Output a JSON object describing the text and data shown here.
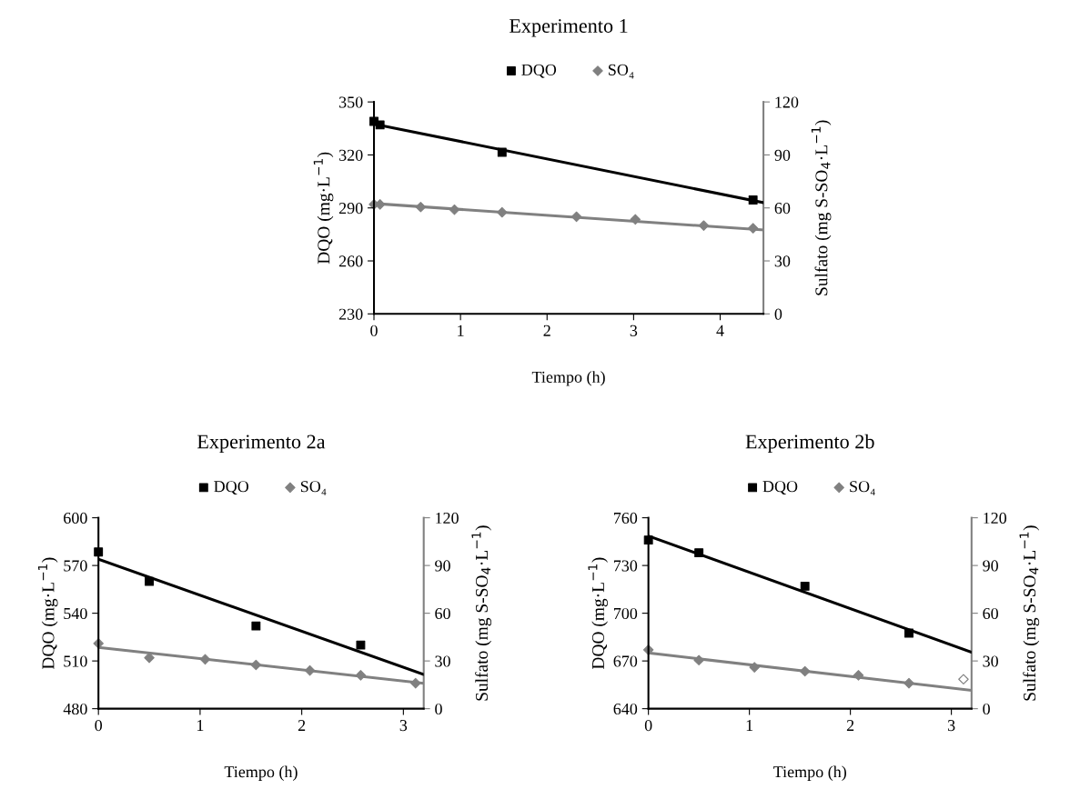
{
  "chart_data": [
    {
      "type": "scatter",
      "title": "Experimento 1",
      "xlabel": "Tiempo (h)",
      "ylabel": "DQO (mg·L$^{−1}$)",
      "y2label": "Sulfato (mg S-SO$_{4}$·L$^{−1}$)",
      "xlim": [
        0,
        4.5
      ],
      "xticks": [
        0,
        1,
        2,
        3,
        4
      ],
      "ylim": [
        230,
        350
      ],
      "yticks": [
        230,
        260,
        290,
        320,
        350
      ],
      "y2lim": [
        0,
        120
      ],
      "y2ticks": [
        0,
        30,
        60,
        90,
        120
      ],
      "legend": "top",
      "grid": false,
      "series": [
        {
          "name": "DQO",
          "marker": "square",
          "color": "#000000",
          "x": [
            0,
            0.07,
            1.48,
            4.38
          ],
          "values": [
            339,
            337,
            321.5,
            294.5
          ]
        },
        {
          "name": "SO₄",
          "marker": "diamond",
          "axis": "y2",
          "color": "#808080",
          "x": [
            0,
            0.07,
            0.54,
            0.93,
            1.48,
            2.34,
            3.02,
            3.81,
            4.38
          ],
          "values": [
            62,
            62,
            60.5,
            59,
            57.5,
            55,
            53.5,
            50,
            48.5
          ]
        },
        {
          "type": "line",
          "marker": "none",
          "color": "#000000",
          "x": [
            0,
            4.5
          ],
          "values": [
            337.5,
            293
          ]
        },
        {
          "type": "line",
          "marker": "none",
          "axis": "y2",
          "color": "#808080",
          "x": [
            0,
            4.5
          ],
          "values": [
            62.5,
            47.5
          ]
        }
      ]
    },
    {
      "type": "scatter",
      "title": "Experimento 2a",
      "xlabel": "Tiempo (h)",
      "ylabel": "DQO (mg·L$^{−1}$)",
      "y2label": "Sulfato (mg S-SO$_{4}$·L$^{−1}$)",
      "xlim": [
        0,
        3.2
      ],
      "xticks": [
        0,
        1,
        2,
        3
      ],
      "ylim": [
        480,
        600
      ],
      "yticks": [
        480,
        510,
        540,
        570,
        600
      ],
      "y2lim": [
        0,
        120
      ],
      "y2ticks": [
        0,
        30,
        60,
        90,
        120
      ],
      "legend": "top",
      "grid": false,
      "series": [
        {
          "name": "DQO",
          "marker": "square",
          "color": "#000000",
          "x": [
            0,
            0.5,
            1.55,
            2.58
          ],
          "values": [
            578.5,
            560,
            532,
            520
          ]
        },
        {
          "name": "SO₄",
          "marker": "diamond",
          "axis": "y2",
          "color": "#808080",
          "x": [
            0,
            0.5,
            1.05,
            1.55,
            2.08,
            2.58,
            3.12
          ],
          "values": [
            41,
            32,
            31,
            27.5,
            24,
            21,
            16
          ]
        },
        {
          "type": "line",
          "marker": "none",
          "color": "#000000",
          "x": [
            0,
            3.2
          ],
          "values": [
            574,
            501.5
          ]
        },
        {
          "type": "line",
          "marker": "none",
          "axis": "y2",
          "color": "#808080",
          "x": [
            0,
            3.2
          ],
          "values": [
            38.5,
            16
          ]
        }
      ]
    },
    {
      "type": "scatter",
      "title": "Experimento 2b",
      "xlabel": "Tiempo (h)",
      "ylabel": "DQO (mg·L$^{−1}$)",
      "y2label": "Sulfato (mg S-SO$_{4}$·L$^{−1}$)",
      "xlim": [
        0,
        3.2
      ],
      "xticks": [
        0,
        1,
        2,
        3
      ],
      "ylim": [
        640,
        760
      ],
      "yticks": [
        640,
        670,
        700,
        730,
        760
      ],
      "y2lim": [
        0,
        120
      ],
      "y2ticks": [
        0,
        30,
        60,
        90,
        120
      ],
      "legend": "top",
      "grid": false,
      "series": [
        {
          "name": "DQO",
          "marker": "square",
          "color": "#000000",
          "x": [
            0,
            0.5,
            1.55,
            2.58
          ],
          "values": [
            746,
            738,
            717,
            687.5
          ]
        },
        {
          "name": "SO₄",
          "marker": "diamond",
          "axis": "y2",
          "color": "#808080",
          "x": [
            0,
            0.5,
            1.05,
            1.55,
            2.08,
            2.58
          ],
          "values": [
            37,
            30.5,
            26,
            23.5,
            21,
            16
          ]
        },
        {
          "marker": "diamond",
          "axis": "y2",
          "color": "#ffffff",
          "x": [
            3.12
          ],
          "values": [
            18.5
          ]
        },
        {
          "type": "line",
          "marker": "none",
          "color": "#000000",
          "x": [
            0,
            3.2
          ],
          "values": [
            748.5,
            675.5
          ]
        },
        {
          "type": "line",
          "marker": "none",
          "axis": "y2",
          "color": "#808080",
          "x": [
            0,
            3.2
          ],
          "values": [
            35,
            11.5
          ]
        }
      ]
    }
  ]
}
